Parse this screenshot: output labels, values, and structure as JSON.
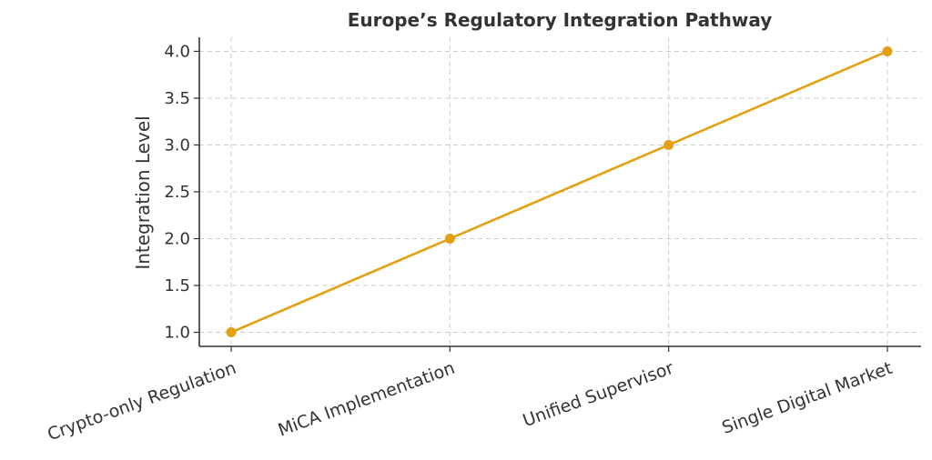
{
  "chart_data": {
    "type": "line",
    "title": "Europe’s Regulatory Integration Pathway",
    "xlabel": "",
    "ylabel": "Integration Level",
    "categories": [
      "Crypto-only Regulation",
      "MiCA Implementation",
      "Unified Supervisor",
      "Single Digital Market"
    ],
    "series": [
      {
        "values": [
          1.0,
          2.0,
          3.0,
          4.0
        ],
        "color": "#E3A012"
      }
    ],
    "ylim": [
      0.85,
      4.15
    ],
    "yticks": [
      "1.0",
      "1.5",
      "2.0",
      "2.5",
      "3.0",
      "3.5",
      "4.0"
    ],
    "grid": true,
    "marker": "circle"
  }
}
